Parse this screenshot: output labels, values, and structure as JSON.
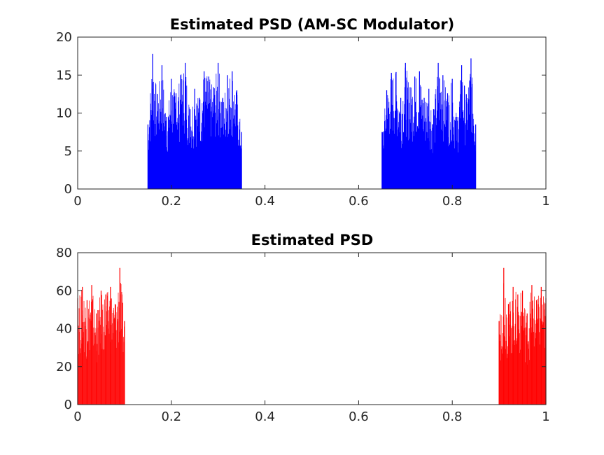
{
  "chart_data": [
    {
      "type": "bar",
      "title": "Estimated PSD (AM-SC Modulator)",
      "xlabel": "",
      "ylabel": "",
      "xlim": [
        0,
        1
      ],
      "ylim": [
        0,
        20
      ],
      "xticks": [
        "0",
        "0.2",
        "0.4",
        "0.6",
        "0.8",
        "1"
      ],
      "yticks": [
        "0",
        "5",
        "10",
        "15",
        "20"
      ],
      "grid": false,
      "color": "#0000ff",
      "bands": [
        {
          "x_start": 0.15,
          "x_end": 0.35
        },
        {
          "x_start": 0.65,
          "x_end": 0.85
        }
      ],
      "series": [
        {
          "x": [
            0.15,
            0.16,
            0.17,
            0.18,
            0.19,
            0.2,
            0.21,
            0.22,
            0.23,
            0.24,
            0.25,
            0.26,
            0.27,
            0.28,
            0.29,
            0.3,
            0.31,
            0.32,
            0.33,
            0.34,
            0.35,
            0.65,
            0.66,
            0.67,
            0.68,
            0.69,
            0.7,
            0.71,
            0.72,
            0.73,
            0.74,
            0.75,
            0.76,
            0.77,
            0.78,
            0.79,
            0.8,
            0.81,
            0.82,
            0.83,
            0.84,
            0.85
          ],
          "values": [
            8.5,
            17.8,
            12.5,
            16.3,
            9.5,
            14.5,
            12.6,
            15.0,
            16.6,
            10.5,
            13.2,
            12.0,
            15.5,
            14.8,
            13.4,
            16.6,
            12.0,
            15.0,
            15.5,
            13.0,
            7.5,
            7.5,
            13.0,
            15.3,
            15.4,
            12.0,
            16.6,
            13.4,
            14.8,
            15.5,
            12.0,
            13.2,
            10.5,
            16.6,
            15.0,
            12.6,
            14.5,
            9.5,
            16.3,
            12.5,
            17.2,
            8.5
          ]
        }
      ]
    },
    {
      "type": "bar",
      "title": "Estimated PSD",
      "xlabel": "",
      "ylabel": "",
      "xlim": [
        0,
        1
      ],
      "ylim": [
        0,
        80
      ],
      "xticks": [
        "0",
        "0.2",
        "0.4",
        "0.6",
        "0.8",
        "1"
      ],
      "yticks": [
        "0",
        "20",
        "40",
        "60",
        "80"
      ],
      "grid": false,
      "color": "#ff0000",
      "bands": [
        {
          "x_start": 0.0,
          "x_end": 0.1
        },
        {
          "x_start": 0.9,
          "x_end": 1.0
        }
      ],
      "series": [
        {
          "x": [
            0.0,
            0.01,
            0.02,
            0.03,
            0.04,
            0.05,
            0.06,
            0.07,
            0.08,
            0.09,
            0.1,
            0.9,
            0.91,
            0.92,
            0.93,
            0.94,
            0.95,
            0.96,
            0.97,
            0.98,
            0.99,
            1.0
          ],
          "values": [
            56,
            62,
            55,
            63,
            48,
            60,
            58,
            62,
            53,
            72,
            44,
            44,
            72,
            53,
            62,
            58,
            60,
            48,
            63,
            55,
            62,
            56
          ]
        }
      ]
    }
  ]
}
